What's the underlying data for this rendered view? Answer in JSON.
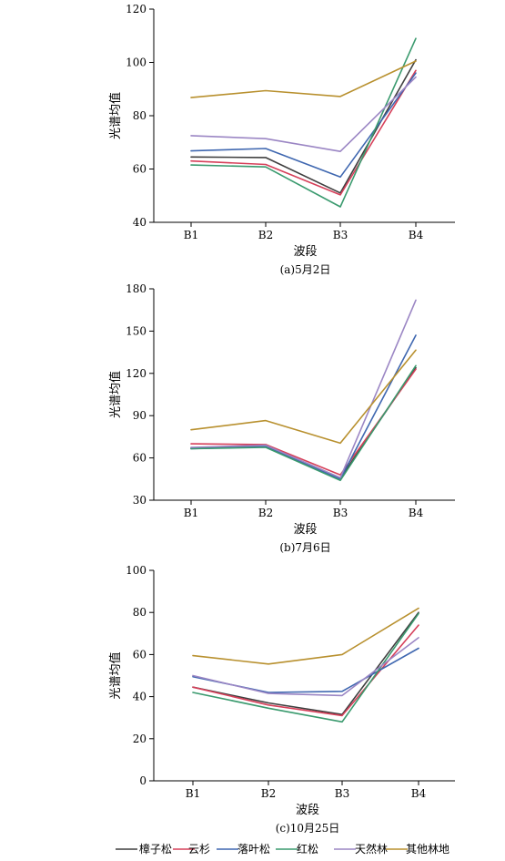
{
  "series_defs": [
    {
      "name": "樟子松",
      "color": "#3f3f3f"
    },
    {
      "name": "云杉",
      "color": "#d6405a"
    },
    {
      "name": "落叶松",
      "color": "#3f67b0"
    },
    {
      "name": "红松",
      "color": "#3a9a6e"
    },
    {
      "name": "天然林",
      "color": "#9b86c4"
    },
    {
      "name": "其他林地",
      "color": "#b8902e"
    }
  ],
  "legend": {
    "position": "bottom"
  },
  "chart_data": [
    {
      "type": "line",
      "caption": "(a)5月2日",
      "xlabel": "波段",
      "ylabel": "光谱均值",
      "categories": [
        "B1",
        "B2",
        "B3",
        "B4"
      ],
      "ylim": [
        40,
        120
      ],
      "yticks": [
        40,
        60,
        80,
        100,
        120
      ],
      "grid": false,
      "series": [
        {
          "name": "樟子松",
          "values": [
            64.5,
            64.3,
            51.0,
            101.0
          ]
        },
        {
          "name": "云杉",
          "values": [
            63.0,
            61.7,
            50.3,
            97.0
          ]
        },
        {
          "name": "落叶松",
          "values": [
            66.8,
            67.7,
            57.0,
            96.0
          ]
        },
        {
          "name": "红松",
          "values": [
            61.5,
            60.8,
            45.8,
            109.0
          ]
        },
        {
          "name": "天然林",
          "values": [
            72.5,
            71.4,
            66.6,
            94.5
          ]
        },
        {
          "name": "其他林地",
          "values": [
            86.8,
            89.4,
            87.2,
            100.5
          ]
        }
      ]
    },
    {
      "type": "line",
      "caption": "(b)7月6日",
      "xlabel": "波段",
      "ylabel": "光谱均值",
      "categories": [
        "B1",
        "B2",
        "B3",
        "B4"
      ],
      "ylim": [
        30,
        180
      ],
      "yticks": [
        30,
        60,
        90,
        120,
        150,
        180
      ],
      "grid": false,
      "series": [
        {
          "name": "樟子松",
          "values": [
            67.0,
            68.5,
            45.5,
            124.0
          ]
        },
        {
          "name": "云杉",
          "values": [
            70.0,
            69.5,
            48.0,
            123.0
          ]
        },
        {
          "name": "落叶松",
          "values": [
            66.5,
            68.0,
            45.0,
            147.0
          ]
        },
        {
          "name": "红松",
          "values": [
            66.5,
            67.5,
            44.0,
            125.5
          ]
        },
        {
          "name": "天然林",
          "values": [
            67.5,
            69.0,
            46.0,
            172.0
          ]
        },
        {
          "name": "其他林地",
          "values": [
            80.0,
            86.5,
            70.5,
            136.5
          ]
        }
      ]
    },
    {
      "type": "line",
      "caption": "(c)10月25日",
      "xlabel": "波段",
      "ylabel": "光谱均值",
      "categories": [
        "B1",
        "B2",
        "B3",
        "B4"
      ],
      "ylim": [
        0,
        100
      ],
      "yticks": [
        0,
        20,
        40,
        60,
        80,
        100
      ],
      "grid": false,
      "series": [
        {
          "name": "樟子松",
          "values": [
            44.5,
            37.0,
            31.5,
            80.0
          ]
        },
        {
          "name": "云杉",
          "values": [
            44.5,
            36.0,
            31.0,
            74.0
          ]
        },
        {
          "name": "落叶松",
          "values": [
            49.5,
            42.0,
            42.5,
            63.0
          ]
        },
        {
          "name": "红松",
          "values": [
            42.0,
            34.5,
            28.0,
            79.5
          ]
        },
        {
          "name": "天然林",
          "values": [
            50.0,
            41.5,
            40.5,
            68.0
          ]
        },
        {
          "name": "其他林地",
          "values": [
            59.5,
            55.5,
            60.0,
            82.0
          ]
        }
      ]
    }
  ]
}
